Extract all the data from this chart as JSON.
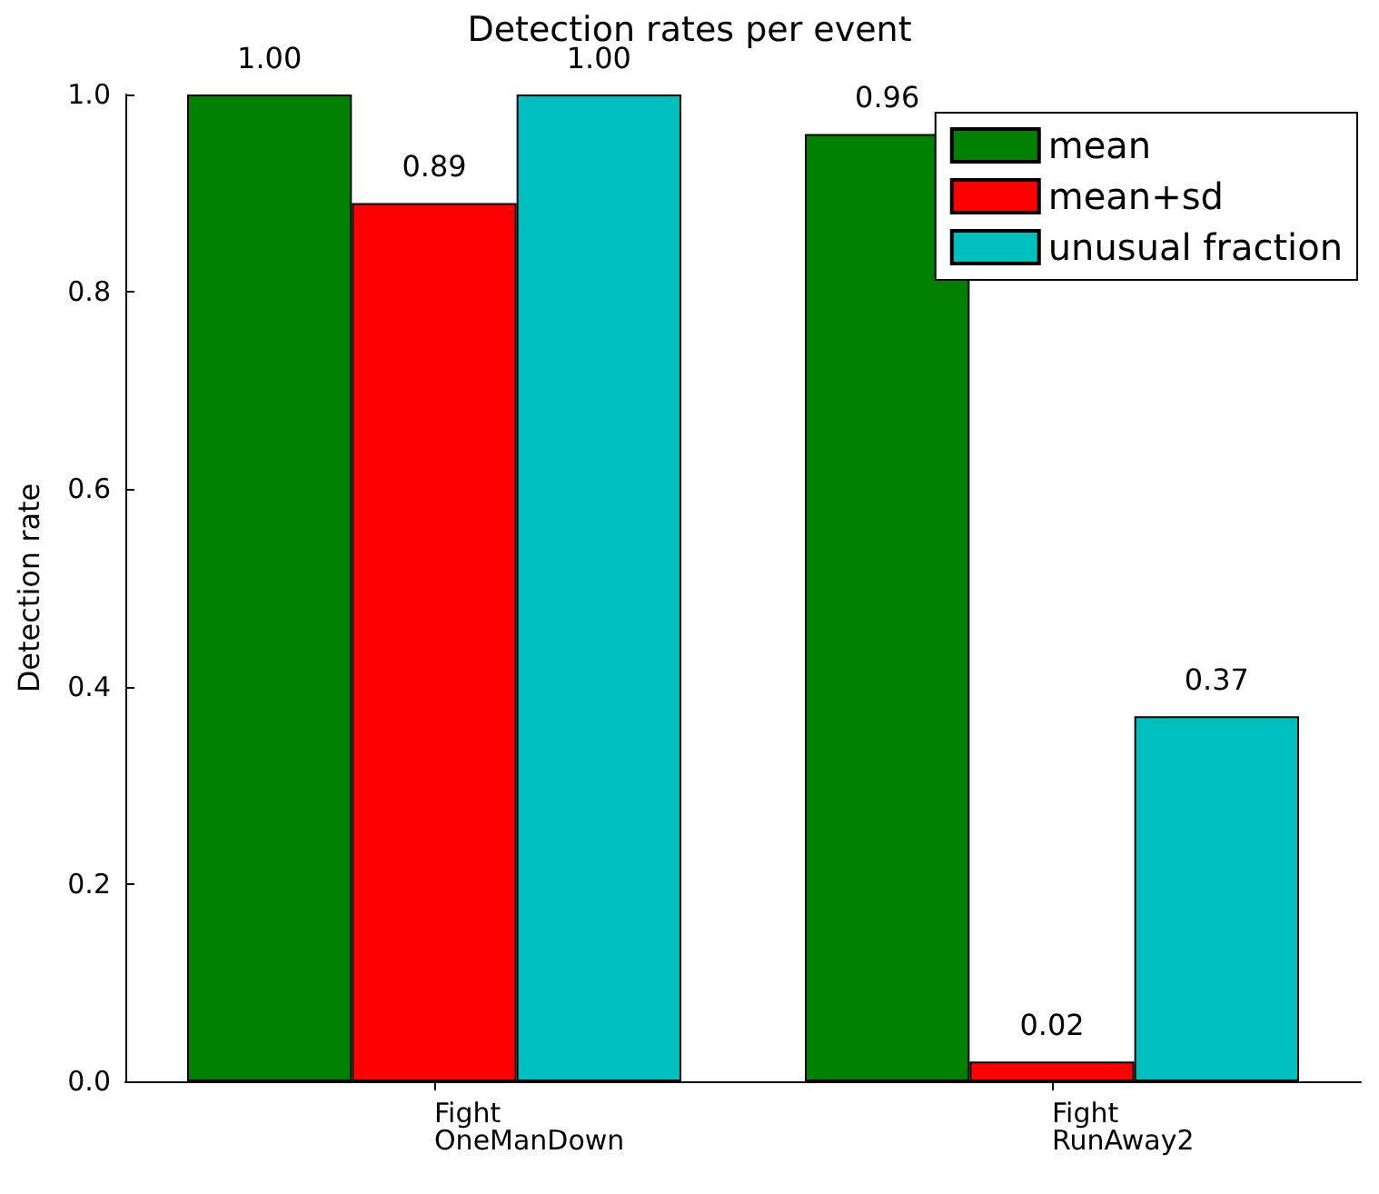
{
  "chart_data": {
    "type": "bar",
    "title": "Detection rates per event",
    "ylabel": "Detection rate",
    "categories": [
      "Fight\nOneManDown",
      "Fight\nRunAway2"
    ],
    "series": [
      {
        "name": "mean",
        "color": "#008000",
        "values": [
          1.0,
          0.96
        ],
        "value_labels": [
          "1.00",
          "0.96"
        ]
      },
      {
        "name": "mean+sd",
        "color": "#ff0000",
        "values": [
          0.89,
          0.02
        ],
        "value_labels": [
          "0.89",
          "0.02"
        ]
      },
      {
        "name": "unusual fraction",
        "color": "#00bfbf",
        "values": [
          1.0,
          0.37
        ],
        "value_labels": [
          "1.00",
          "0.37"
        ]
      }
    ],
    "ylim": [
      0,
      1
    ],
    "yticks": [
      {
        "value": 0,
        "label": "0.0"
      },
      0.2,
      0.4,
      0.6,
      0.8,
      {
        "value": 1,
        "label": "1.0"
      }
    ],
    "grid": false,
    "legend": "top right"
  }
}
